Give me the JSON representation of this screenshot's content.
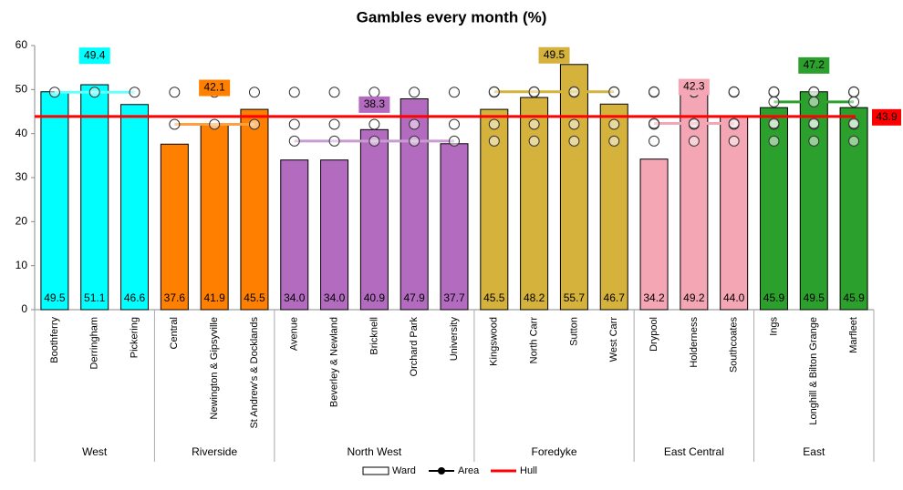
{
  "chart_data": {
    "type": "bar",
    "title": "Gambles every month (%)",
    "ylim": [
      0,
      60
    ],
    "yticks": [
      0,
      10,
      20,
      30,
      40,
      50,
      60
    ],
    "groups": [
      {
        "name": "West",
        "color": "#00ffff",
        "line_color": "#66ffff",
        "area": 49.4,
        "categories": [
          "Boothferry",
          "Derringham",
          "Pickering"
        ],
        "values": [
          49.5,
          51.1,
          46.6
        ],
        "value_labels": [
          "49.5",
          "51.1",
          "46.6"
        ]
      },
      {
        "name": "Riverside",
        "color": "#ff8000",
        "line_color": "#ffa040",
        "area": 42.1,
        "categories": [
          "Central",
          "Newington & Gipsyville",
          "St Andrew's & Docklands"
        ],
        "values": [
          37.6,
          41.9,
          45.5
        ],
        "value_labels": [
          "37.6",
          "41.9",
          "45.5"
        ]
      },
      {
        "name": "North West",
        "color": "#b36bbf",
        "line_color": "#c99bd3",
        "area": 38.3,
        "categories": [
          "Avenue",
          "Beverley & Newland",
          "Bricknell",
          "Orchard Park",
          "University"
        ],
        "values": [
          34.0,
          34.0,
          40.9,
          47.9,
          37.7
        ],
        "value_labels": [
          "34.0",
          "34.0",
          "40.9",
          "47.9",
          "37.7"
        ]
      },
      {
        "name": "Foredyke",
        "color": "#d4b23c",
        "line_color": "#d4b23c",
        "area": 49.5,
        "categories": [
          "Kingswood",
          "North Carr",
          "Sutton",
          "West Carr"
        ],
        "values": [
          45.5,
          48.2,
          55.7,
          46.7
        ],
        "value_labels": [
          "45.5",
          "48.2",
          "55.7",
          "46.7"
        ]
      },
      {
        "name": "East Central",
        "color": "#f4a6b4",
        "line_color": "#f4a6b4",
        "area": 42.3,
        "categories": [
          "Drypool",
          "Holderness",
          "Southcoates"
        ],
        "values": [
          34.2,
          49.2,
          44.0
        ],
        "value_labels": [
          "34.2",
          "49.2",
          "44.0"
        ]
      },
      {
        "name": "East",
        "color": "#2ca02c",
        "line_color": "#2ca02c",
        "area": 47.2,
        "categories": [
          "Ings",
          "Longhill & Bilton Grange",
          "Marfleet"
        ],
        "values": [
          45.9,
          49.5,
          45.9
        ],
        "value_labels": [
          "45.9",
          "49.5",
          "45.9"
        ]
      }
    ],
    "hull": {
      "value": 43.9,
      "color": "#ff0000"
    },
    "legend": [
      "Ward",
      "Area",
      "Hull"
    ]
  }
}
